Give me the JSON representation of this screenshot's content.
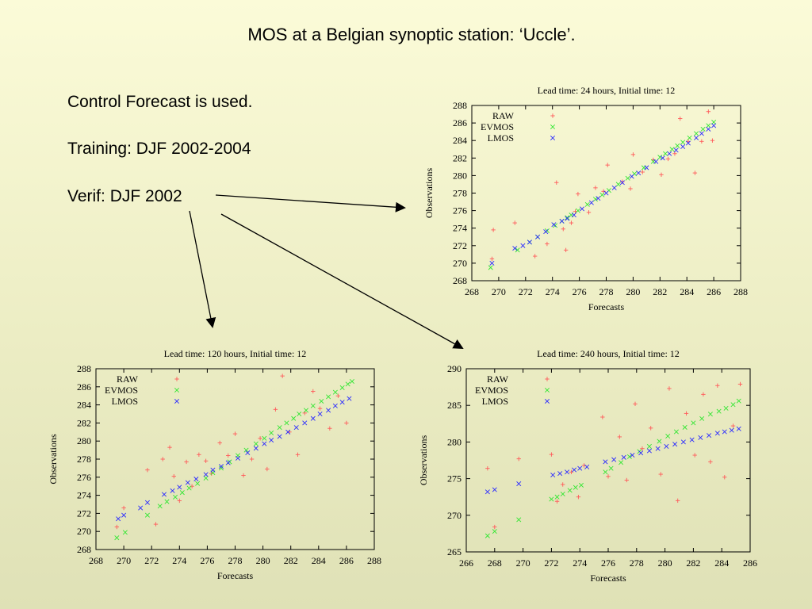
{
  "slide": {
    "title": "MOS at a Belgian synoptic station: ‘Uccle’.",
    "bullets": [
      "Control Forecast is used.",
      "Training: DJF 2002-2004",
      "Verif: DJF 2002"
    ]
  },
  "colors": {
    "raw": "#ff5a5a",
    "evmos": "#33e633",
    "lmos": "#2b2bff",
    "arrow": "#000000"
  },
  "chart_data": [
    {
      "type": "scatter",
      "title": "Lead time: 24 hours, Initial time: 12",
      "xlabel": "Forecasts",
      "ylabel": "Observations",
      "xlim": [
        268,
        288
      ],
      "ylim": [
        268,
        288
      ],
      "xticks": [
        268,
        270,
        272,
        274,
        276,
        278,
        280,
        282,
        284,
        286,
        288
      ],
      "yticks": [
        268,
        270,
        272,
        274,
        276,
        278,
        280,
        282,
        284,
        286,
        288
      ],
      "tick_labels_x": [
        "268",
        "270",
        "272",
        "274",
        "276",
        "278",
        "280",
        "282",
        "284",
        "286",
        "288"
      ],
      "tick_labels_y": [
        "268",
        "270",
        "272",
        "274",
        "276",
        "278",
        "280",
        "282",
        "284",
        "286",
        "288"
      ],
      "legend": [
        "RAW",
        "EVMOS",
        "LMOS"
      ],
      "legend_position": "top-left",
      "series": [
        {
          "name": "RAW",
          "x": [
            269.5,
            269.6,
            271.2,
            272.7,
            273.6,
            274.3,
            274.8,
            275.0,
            275.4,
            275.7,
            275.9,
            276.7,
            277.2,
            277.8,
            278.1,
            279.2,
            279.8,
            280.0,
            280.7,
            281.5,
            282.1,
            282.6,
            283.1,
            283.5,
            284.1,
            284.6,
            285.1,
            285.6,
            285.9
          ],
          "y": [
            270.5,
            273.8,
            274.6,
            270.8,
            272.2,
            279.2,
            273.9,
            271.5,
            274.6,
            275.9,
            277.9,
            275.8,
            278.6,
            278.2,
            281.2,
            279.3,
            278.5,
            282.4,
            280.4,
            281.8,
            280.1,
            281.9,
            282.5,
            286.5,
            283.9,
            280.3,
            283.9,
            287.3,
            284.0
          ]
        },
        {
          "name": "EVMOS",
          "x": [
            269.4,
            271.4,
            272.3,
            272.9,
            273.6,
            274.2,
            274.7,
            275.1,
            275.4,
            275.9,
            276.6,
            277.2,
            277.7,
            278.2,
            278.9,
            279.6,
            280.1,
            280.8,
            281.5,
            282.0,
            282.4,
            282.9,
            283.3,
            283.7,
            284.2,
            284.7,
            285.2,
            285.6,
            286.0
          ],
          "y": [
            269.5,
            271.5,
            272.4,
            273.0,
            273.7,
            274.3,
            274.8,
            275.2,
            275.5,
            276.0,
            276.7,
            277.3,
            277.8,
            278.3,
            279.0,
            279.7,
            280.2,
            280.9,
            281.6,
            282.1,
            282.5,
            283.0,
            283.4,
            283.8,
            284.3,
            284.8,
            285.3,
            285.7,
            286.1
          ]
        },
        {
          "name": "LMOS",
          "x": [
            269.5,
            271.2,
            271.8,
            272.3,
            272.9,
            273.5,
            274.1,
            274.7,
            275.1,
            275.6,
            276.2,
            276.9,
            277.4,
            278.0,
            278.6,
            279.2,
            279.9,
            280.4,
            281.0,
            281.7,
            282.2,
            282.7,
            283.2,
            283.7,
            284.1,
            284.7,
            285.1,
            285.6,
            286.0
          ],
          "y": [
            270.0,
            271.7,
            272.0,
            272.4,
            273.0,
            273.6,
            274.4,
            274.8,
            275.1,
            275.5,
            276.2,
            276.9,
            277.4,
            278.0,
            278.6,
            279.2,
            279.9,
            280.3,
            280.9,
            281.6,
            282.0,
            282.5,
            282.9,
            283.3,
            283.7,
            284.3,
            284.8,
            285.3,
            285.7
          ]
        }
      ]
    },
    {
      "type": "scatter",
      "title": "Lead time: 120 hours, Initial time: 12",
      "xlabel": "Forecasts",
      "ylabel": "Observations",
      "xlim": [
        268,
        288
      ],
      "ylim": [
        268,
        288
      ],
      "xticks": [
        268,
        270,
        272,
        274,
        276,
        278,
        280,
        282,
        284,
        286,
        288
      ],
      "yticks": [
        268,
        270,
        272,
        274,
        276,
        278,
        280,
        282,
        284,
        286,
        288
      ],
      "tick_labels_x": [
        "268",
        "270",
        "272",
        "274",
        "276",
        "278",
        "280",
        "282",
        "284",
        "286",
        "288"
      ],
      "tick_labels_y": [
        "268",
        "270",
        "272",
        "274",
        "276",
        "278",
        "280",
        "282",
        "284",
        "286",
        "288"
      ],
      "legend": [
        "RAW",
        "EVMOS",
        "LMOS"
      ],
      "legend_position": "top-left",
      "series": [
        {
          "name": "RAW",
          "x": [
            269.5,
            270.0,
            271.7,
            272.3,
            272.8,
            273.3,
            273.6,
            274.0,
            274.5,
            274.9,
            275.4,
            275.9,
            276.3,
            276.9,
            277.5,
            278.0,
            278.6,
            279.2,
            279.8,
            280.3,
            280.9,
            281.4,
            281.9,
            282.5,
            283.0,
            283.6,
            284.1,
            284.8,
            285.4,
            286.0
          ],
          "y": [
            270.5,
            272.6,
            276.8,
            270.8,
            278.0,
            279.3,
            276.1,
            273.4,
            277.7,
            275.0,
            278.5,
            277.8,
            276.4,
            279.8,
            278.4,
            280.8,
            276.2,
            278.0,
            280.3,
            276.9,
            283.5,
            287.2,
            281.0,
            278.5,
            283.1,
            285.5,
            283.6,
            281.4,
            285.0,
            282.0
          ]
        },
        {
          "name": "EVMOS",
          "x": [
            269.5,
            270.1,
            271.7,
            272.6,
            273.1,
            273.7,
            274.2,
            274.7,
            275.3,
            275.9,
            276.4,
            277.0,
            277.6,
            278.2,
            278.8,
            279.5,
            280.1,
            280.6,
            281.2,
            281.7,
            282.2,
            282.6,
            283.1,
            283.6,
            284.2,
            284.7,
            285.2,
            285.7,
            286.1,
            286.4
          ],
          "y": [
            269.3,
            269.9,
            271.8,
            272.8,
            273.3,
            273.8,
            274.3,
            274.8,
            275.3,
            275.9,
            276.5,
            277.0,
            277.7,
            278.4,
            279.0,
            279.7,
            280.3,
            280.9,
            281.5,
            282.0,
            282.5,
            283.0,
            283.4,
            283.9,
            284.4,
            284.9,
            285.4,
            285.9,
            286.3,
            286.6
          ]
        },
        {
          "name": "LMOS",
          "x": [
            269.6,
            270.0,
            271.2,
            271.7,
            272.9,
            273.5,
            274.0,
            274.6,
            275.2,
            275.9,
            276.4,
            277.0,
            277.5,
            278.2,
            278.9,
            279.5,
            280.1,
            280.6,
            281.2,
            281.8,
            282.4,
            283.0,
            283.6,
            284.1,
            284.7,
            285.2,
            285.7,
            286.2
          ],
          "y": [
            271.4,
            271.8,
            272.6,
            273.2,
            274.1,
            274.5,
            274.9,
            275.4,
            275.8,
            276.3,
            276.8,
            277.2,
            277.6,
            278.1,
            278.7,
            279.2,
            279.7,
            280.1,
            280.5,
            281.0,
            281.5,
            282.0,
            282.5,
            283.0,
            283.4,
            283.9,
            284.3,
            284.7
          ]
        }
      ]
    },
    {
      "type": "scatter",
      "title": "Lead time: 240 hours, Initial time: 12",
      "xlabel": "Forecasts",
      "ylabel": "Observations",
      "xlim": [
        266,
        286
      ],
      "ylim": [
        265,
        290
      ],
      "xticks": [
        266,
        268,
        270,
        272,
        274,
        276,
        278,
        280,
        282,
        284,
        286
      ],
      "yticks": [
        265,
        270,
        275,
        280,
        285,
        290
      ],
      "tick_labels_x": [
        "266",
        "268",
        "270",
        "272",
        "274",
        "276",
        "278",
        "280",
        "282",
        "284",
        "286"
      ],
      "tick_labels_y": [
        "265",
        "270",
        "275",
        "280",
        "285",
        "290"
      ],
      "legend": [
        "RAW",
        "EVMOS",
        "LMOS"
      ],
      "legend_position": "top-left",
      "series": [
        {
          "name": "RAW",
          "x": [
            267.5,
            268.0,
            269.7,
            272.0,
            272.4,
            272.8,
            273.4,
            273.9,
            274.3,
            275.6,
            276.0,
            276.8,
            277.3,
            277.9,
            278.4,
            279.0,
            279.7,
            280.3,
            280.9,
            281.5,
            282.1,
            282.7,
            283.2,
            283.7,
            284.2,
            284.8,
            285.3
          ],
          "y": [
            276.4,
            268.4,
            277.7,
            278.3,
            271.9,
            274.2,
            275.9,
            272.5,
            276.8,
            283.4,
            275.3,
            280.7,
            274.8,
            285.2,
            279.1,
            281.9,
            275.6,
            287.3,
            272.0,
            283.9,
            278.2,
            286.5,
            277.3,
            287.7,
            275.2,
            282.2,
            287.9
          ]
        },
        {
          "name": "EVMOS",
          "x": [
            267.5,
            268.0,
            269.7,
            272.0,
            272.4,
            272.8,
            273.3,
            273.7,
            274.1,
            275.8,
            276.2,
            276.9,
            277.5,
            278.2,
            278.9,
            279.6,
            280.2,
            280.8,
            281.4,
            282.0,
            282.6,
            283.2,
            283.8,
            284.3,
            284.8,
            285.2
          ],
          "y": [
            267.2,
            267.8,
            269.4,
            272.2,
            272.5,
            272.9,
            273.4,
            273.8,
            274.1,
            275.9,
            276.4,
            277.2,
            278.0,
            278.7,
            279.4,
            280.1,
            280.8,
            281.4,
            282.0,
            282.6,
            283.2,
            283.8,
            284.2,
            284.6,
            285.1,
            285.6
          ]
        },
        {
          "name": "LMOS",
          "x": [
            267.5,
            268.0,
            269.7,
            272.1,
            272.6,
            273.1,
            273.6,
            274.0,
            274.5,
            275.8,
            276.4,
            277.1,
            277.7,
            278.3,
            278.9,
            279.5,
            280.1,
            280.7,
            281.3,
            281.9,
            282.5,
            283.1,
            283.7,
            284.2,
            284.7,
            285.2
          ],
          "y": [
            273.2,
            273.5,
            274.3,
            275.5,
            275.7,
            275.9,
            276.2,
            276.4,
            276.6,
            277.3,
            277.6,
            277.9,
            278.2,
            278.5,
            278.8,
            279.1,
            279.4,
            279.7,
            280.0,
            280.3,
            280.6,
            280.9,
            281.2,
            281.4,
            281.6,
            281.8
          ]
        }
      ]
    }
  ]
}
